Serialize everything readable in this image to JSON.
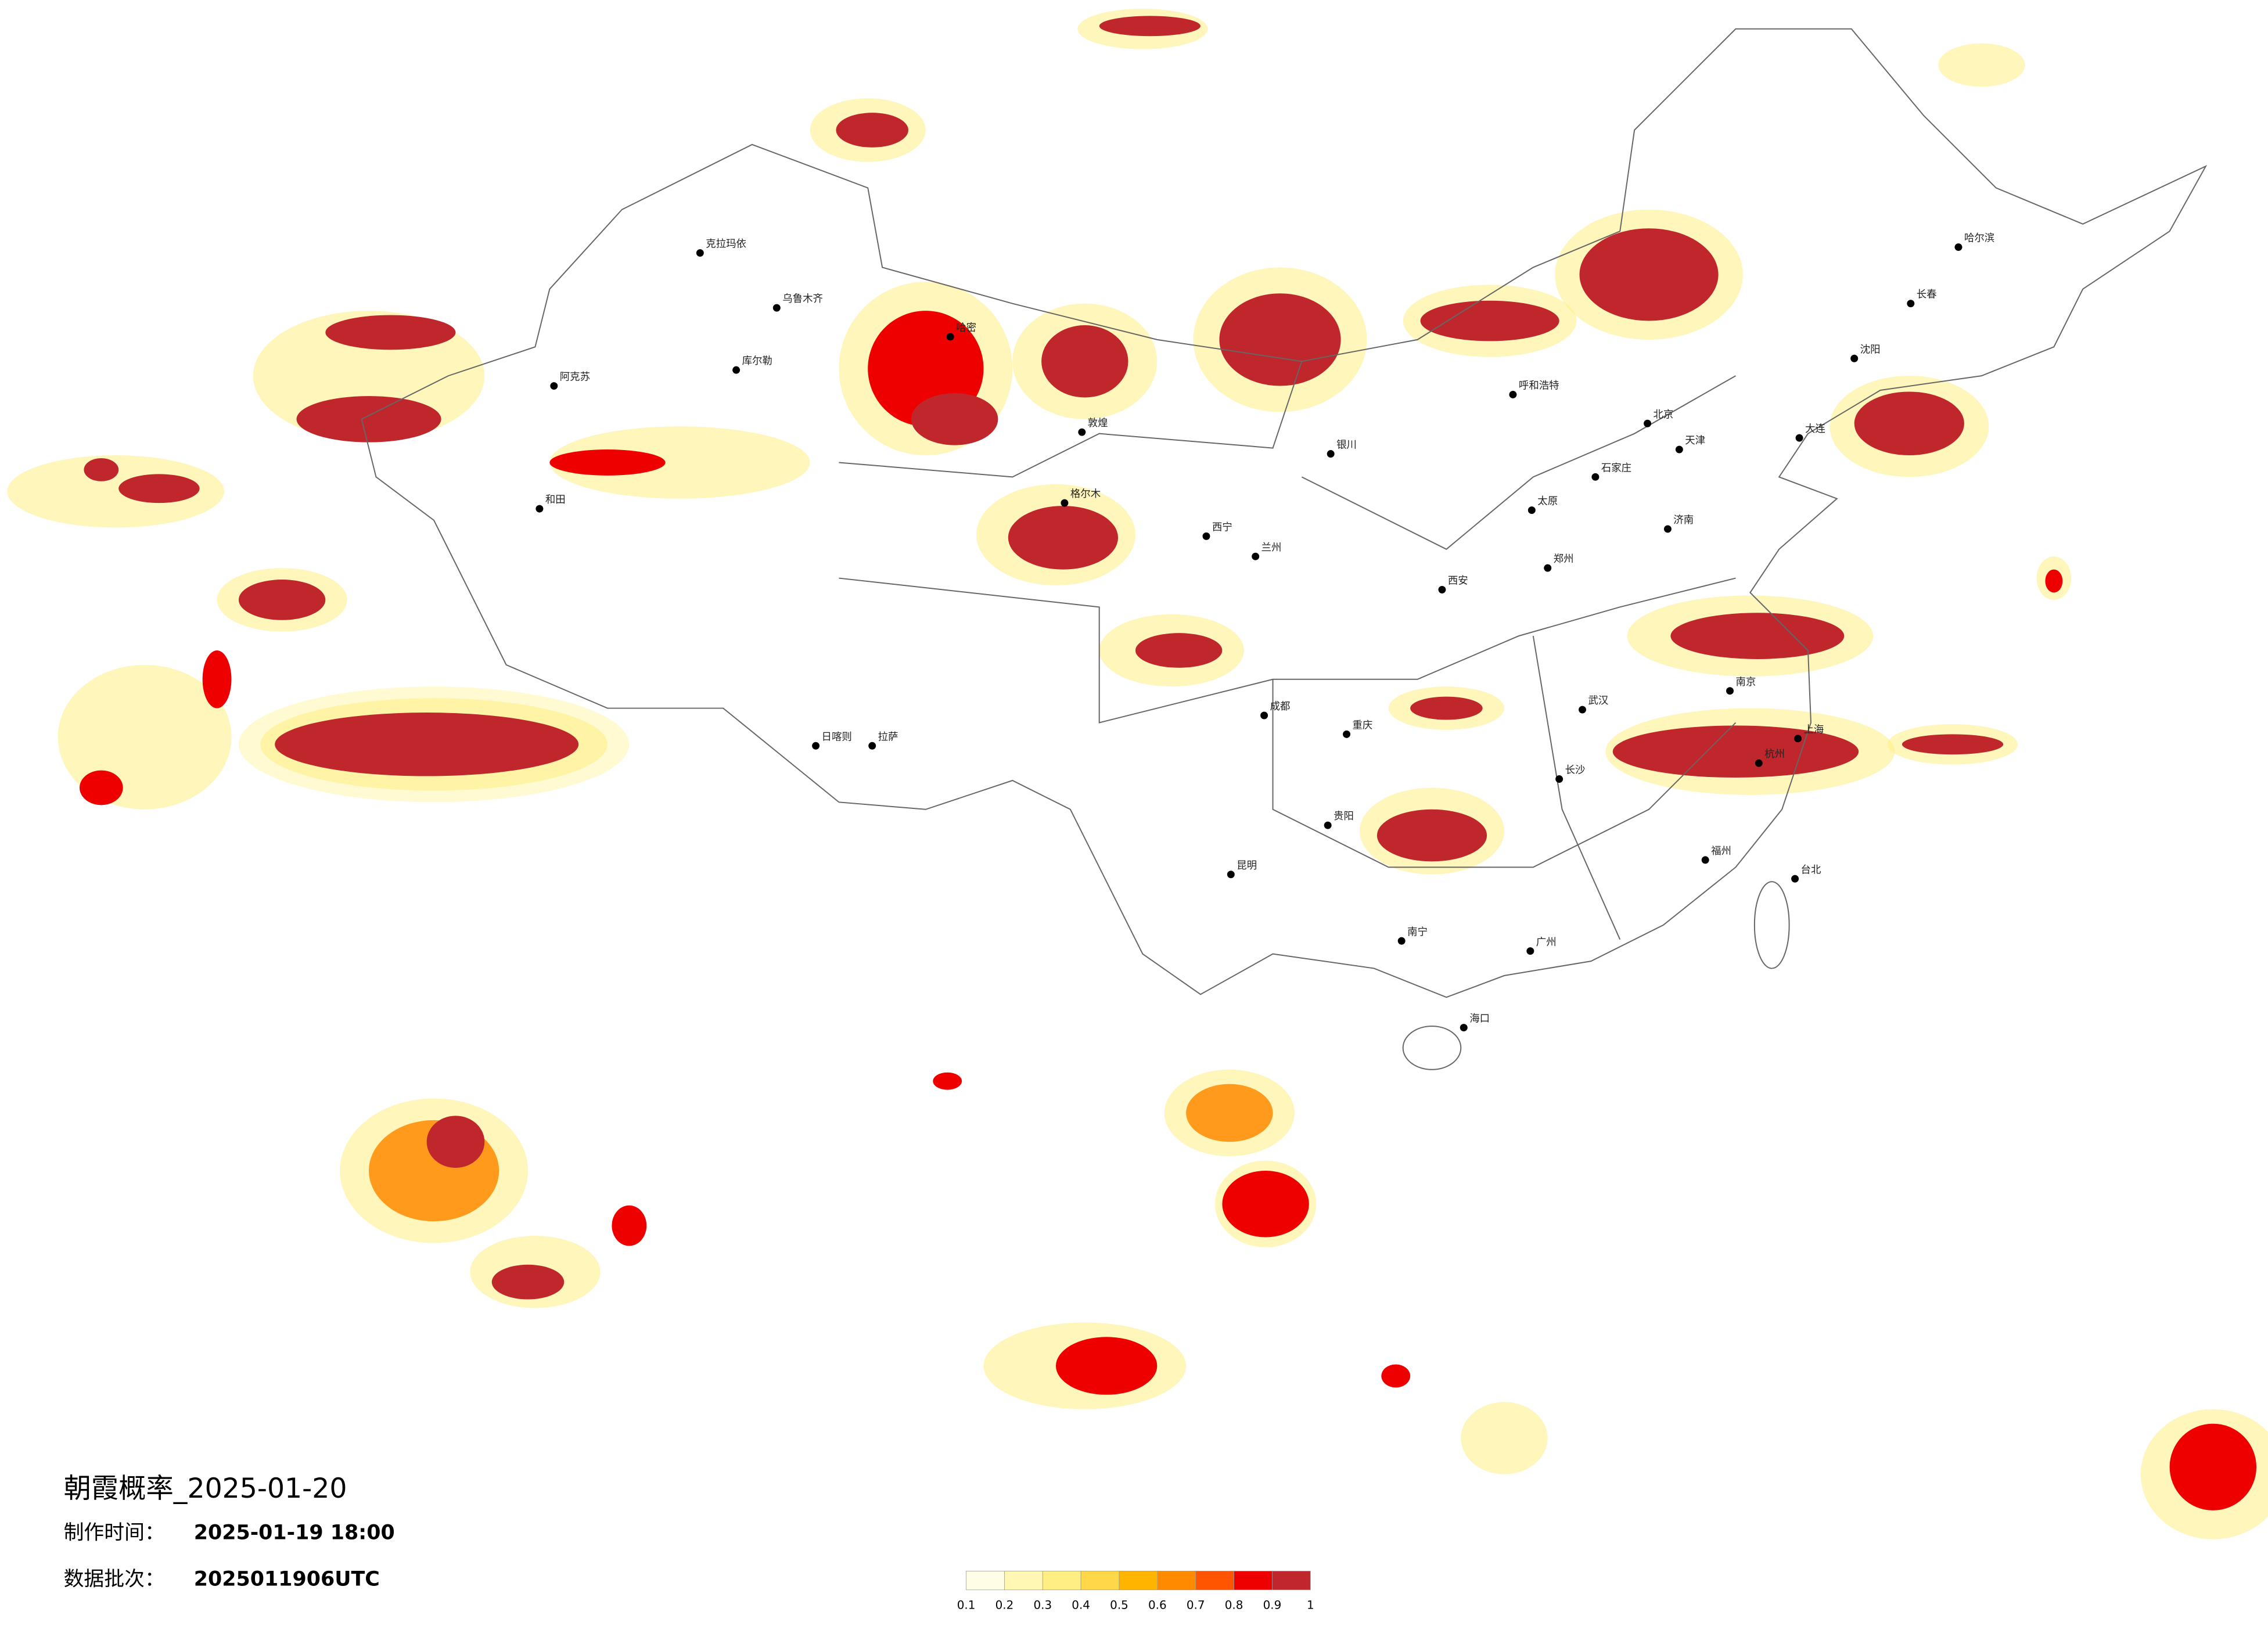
{
  "header": {
    "title": "朝霞概率_2025-01-20",
    "made_label": "制作时间：",
    "made_value": "2025-01-19 18:00",
    "batch_label": "数据批次：",
    "batch_value": "2025011906UTC"
  },
  "legend": {
    "ticks": [
      0.1,
      0.2,
      0.3,
      0.4,
      0.5,
      0.6,
      0.7,
      0.8,
      0.9,
      1
    ],
    "colors": [
      "#fffde6",
      "#fff7b3",
      "#ffee84",
      "#ffd84a",
      "#ffb400",
      "#ff8a00",
      "#ff5500",
      "#ee0000",
      "#c0272d"
    ]
  },
  "cities": [
    "克拉玛依",
    "乌鲁木齐",
    "库尔勒",
    "阿克苏",
    "和田",
    "哈密",
    "敦煌",
    "格尔木",
    "拉萨",
    "日喀则",
    "西宁",
    "兰州",
    "银川",
    "呼和浩特",
    "北京",
    "天津",
    "石家庄",
    "太原",
    "西安",
    "郑州",
    "济南",
    "南京",
    "上海",
    "杭州",
    "武汉",
    "长沙",
    "重庆",
    "成都",
    "贵阳",
    "昆明",
    "南宁",
    "广州",
    "福州",
    "海口",
    "哈尔滨",
    "长春",
    "沈阳",
    "大连",
    "台北"
  ]
}
